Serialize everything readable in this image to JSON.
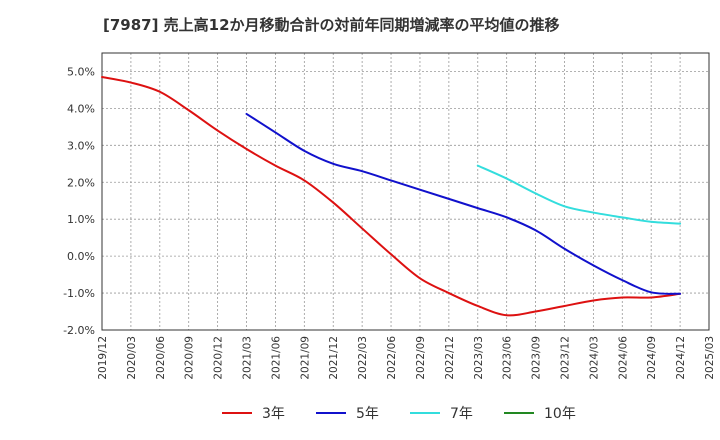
{
  "chart_data": {
    "type": "line",
    "title": "[7987]  売上高12か月移動合計の対前年同期増減率の平均値の推移",
    "xlabel": "",
    "ylabel": "",
    "ylim": [
      -2.0,
      5.5
    ],
    "y_ticks": [
      -2.0,
      -1.0,
      0.0,
      1.0,
      2.0,
      3.0,
      4.0,
      5.0
    ],
    "y_tick_labels": [
      "-2.0%",
      "-1.0%",
      "0.0%",
      "1.0%",
      "2.0%",
      "3.0%",
      "4.0%",
      "5.0%"
    ],
    "x_range": [
      "2019/12",
      "2025/03"
    ],
    "x_tick_labels": [
      "2019/12",
      "2020/03",
      "2020/06",
      "2020/09",
      "2020/12",
      "2021/03",
      "2021/06",
      "2021/09",
      "2021/12",
      "2022/03",
      "2022/06",
      "2022/09",
      "2022/12",
      "2023/03",
      "2023/06",
      "2023/09",
      "2023/12",
      "2024/03",
      "2024/06",
      "2024/09",
      "2024/12",
      "2025/03"
    ],
    "grid": true,
    "legend_position": "bottom",
    "series": [
      {
        "name": "3年",
        "color": "#dd1111",
        "x": [
          "2019/12",
          "2020/03",
          "2020/06",
          "2020/09",
          "2020/12",
          "2021/03",
          "2021/06",
          "2021/09",
          "2021/12",
          "2022/03",
          "2022/06",
          "2022/09",
          "2022/12",
          "2023/03",
          "2023/06",
          "2023/09",
          "2023/12",
          "2024/03",
          "2024/06",
          "2024/09",
          "2024/12"
        ],
        "values": [
          4.85,
          4.7,
          4.45,
          3.95,
          3.4,
          2.9,
          2.45,
          2.05,
          1.45,
          0.75,
          0.05,
          -0.6,
          -1.0,
          -1.35,
          -1.6,
          -1.5,
          -1.35,
          -1.2,
          -1.12,
          -1.12,
          -1.02
        ]
      },
      {
        "name": "5年",
        "color": "#1111cc",
        "x": [
          "2021/03",
          "2021/06",
          "2021/09",
          "2021/12",
          "2022/03",
          "2022/06",
          "2022/09",
          "2022/12",
          "2023/03",
          "2023/06",
          "2023/09",
          "2023/12",
          "2024/03",
          "2024/06",
          "2024/09",
          "2024/12"
        ],
        "values": [
          3.85,
          3.35,
          2.85,
          2.5,
          2.3,
          2.05,
          1.8,
          1.55,
          1.3,
          1.05,
          0.7,
          0.2,
          -0.25,
          -0.65,
          -0.98,
          -1.02
        ]
      },
      {
        "name": "7年",
        "color": "#33dddd",
        "x": [
          "2023/03",
          "2023/06",
          "2023/09",
          "2023/12",
          "2024/03",
          "2024/06",
          "2024/09",
          "2024/12"
        ],
        "values": [
          2.45,
          2.1,
          1.7,
          1.35,
          1.18,
          1.05,
          0.93,
          0.88
        ]
      },
      {
        "name": "10年",
        "color": "#228822",
        "x": [],
        "values": []
      }
    ]
  }
}
